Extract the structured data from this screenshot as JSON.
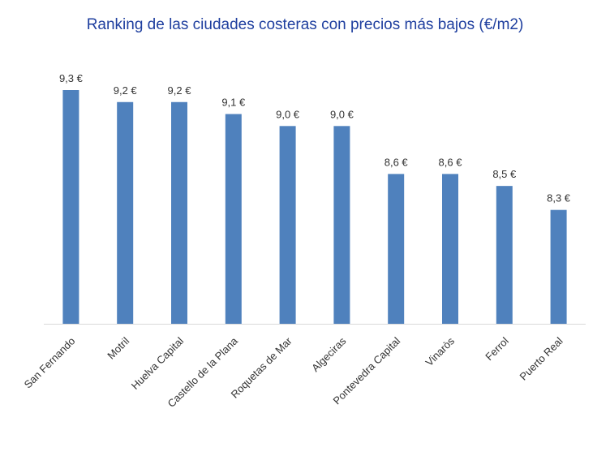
{
  "chart_data": {
    "type": "bar",
    "title": "Ranking de las ciudades costeras con precios más bajos (€/m2)",
    "categories": [
      "San Fernando",
      "Motril",
      "Huelva Capital",
      "Castello de la Plana",
      "Roquetas de Mar",
      "Algeciras",
      "Pontevedra Capital",
      "Vinaròs",
      "Ferrol",
      "Puerto Real"
    ],
    "values": [
      9.3,
      9.2,
      9.2,
      9.1,
      9.0,
      9.0,
      8.6,
      8.6,
      8.5,
      8.3
    ],
    "value_labels": [
      "9,3 €",
      "9,2 €",
      "9,2 €",
      "9,1 €",
      "9,0 €",
      "9,0 €",
      "8,6 €",
      "8,6 €",
      "8,5 €",
      "8,3 €"
    ],
    "ylim": [
      7.35,
      9.3
    ],
    "grid": false,
    "bar_color": "#4f81bd",
    "axis_color": "#d9d9d9"
  }
}
